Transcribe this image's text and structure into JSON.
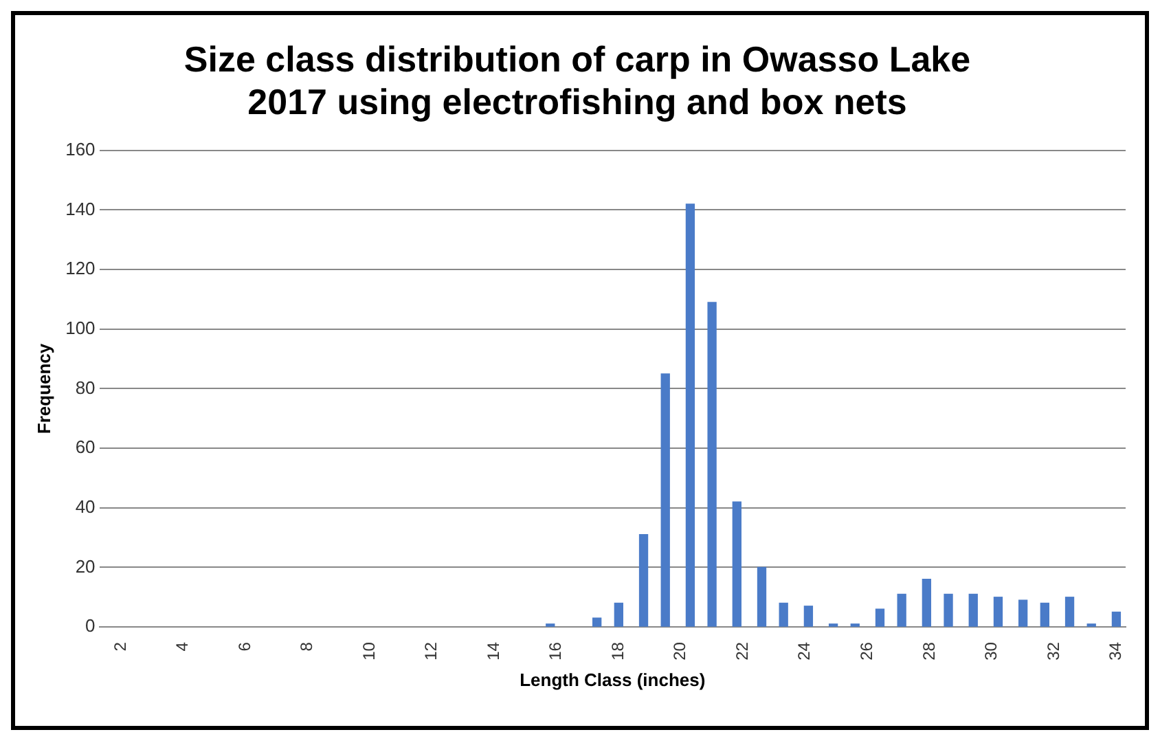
{
  "chart_data": {
    "type": "bar",
    "title": "Size class distribution of carp in Owasso Lake 2017 using electrofishing and box nets",
    "xlabel": "Length Class (inches)",
    "ylabel": "Frequency",
    "x": [
      15.8,
      17.3,
      18,
      18.8,
      19.5,
      20.3,
      21,
      21.8,
      22.6,
      23.3,
      24.1,
      24.9,
      25.6,
      26.4,
      27.1,
      27.9,
      28.6,
      29.4,
      30.2,
      31,
      31.7,
      32.5,
      33.2,
      34
    ],
    "values": [
      1,
      3,
      8,
      31,
      85,
      142,
      109,
      42,
      20,
      8,
      7,
      1,
      1,
      6,
      11,
      16,
      11,
      11,
      10,
      9,
      8,
      10,
      1,
      5
    ],
    "color": "#4a7bc8",
    "xlim": [
      1.3,
      34.3
    ],
    "xticks": [
      2,
      4,
      6,
      8,
      10,
      12,
      14,
      16,
      18,
      20,
      22,
      24,
      26,
      28,
      30,
      32,
      34
    ],
    "ylim": [
      0,
      160
    ],
    "yticks": [
      0,
      20,
      40,
      60,
      80,
      100,
      120,
      140,
      160
    ],
    "grid": "y",
    "legend": false
  }
}
